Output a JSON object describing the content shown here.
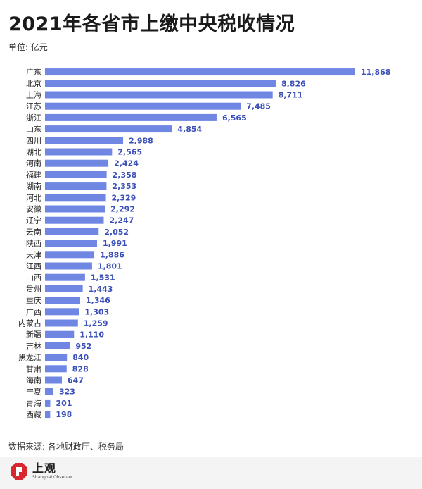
{
  "header": {
    "title": "2021年各省市上缴中央税收情况",
    "unit": "单位: 亿元"
  },
  "footer": {
    "source": "数据来源: 各地财政厅、税务局",
    "logo_cn": "上观",
    "logo_en": "Shanghai Observer"
  },
  "colors": {
    "bar": "#6f87e3",
    "value_label": "#3a4fb8",
    "logo_red": "#d7282f"
  },
  "chart_data": {
    "type": "bar",
    "orientation": "horizontal",
    "title": "2021年各省市上缴中央税收情况",
    "unit": "单位: 亿元",
    "categories": [
      "广东",
      "北京",
      "上海",
      "江苏",
      "浙江",
      "山东",
      "四川",
      "湖北",
      "河南",
      "福建",
      "湖南",
      "河北",
      "安徽",
      "辽宁",
      "云南",
      "陕西",
      "天津",
      "江西",
      "山西",
      "贵州",
      "重庆",
      "广西",
      "内蒙古",
      "新疆",
      "吉林",
      "黑龙江",
      "甘肃",
      "海南",
      "宁夏",
      "青海",
      "西藏"
    ],
    "values": [
      11868,
      8826,
      8711,
      7485,
      6565,
      4854,
      2988,
      2565,
      2424,
      2358,
      2353,
      2329,
      2292,
      2247,
      2052,
      1991,
      1886,
      1801,
      1531,
      1443,
      1346,
      1303,
      1259,
      1110,
      952,
      840,
      828,
      647,
      323,
      201,
      198
    ],
    "value_labels": [
      "11,868",
      "8,826",
      "8,711",
      "7,485",
      "6,565",
      "4,854",
      "2,988",
      "2,565",
      "2,424",
      "2,358",
      "2,353",
      "2,329",
      "2,292",
      "2,247",
      "2,052",
      "1,991",
      "1,886",
      "1,801",
      "1,531",
      "1,443",
      "1,346",
      "1,303",
      "1,259",
      "1,110",
      "952",
      "840",
      "828",
      "647",
      "323",
      "201",
      "198"
    ],
    "xlim": [
      0,
      11868
    ],
    "grid": false,
    "legend": "none"
  }
}
